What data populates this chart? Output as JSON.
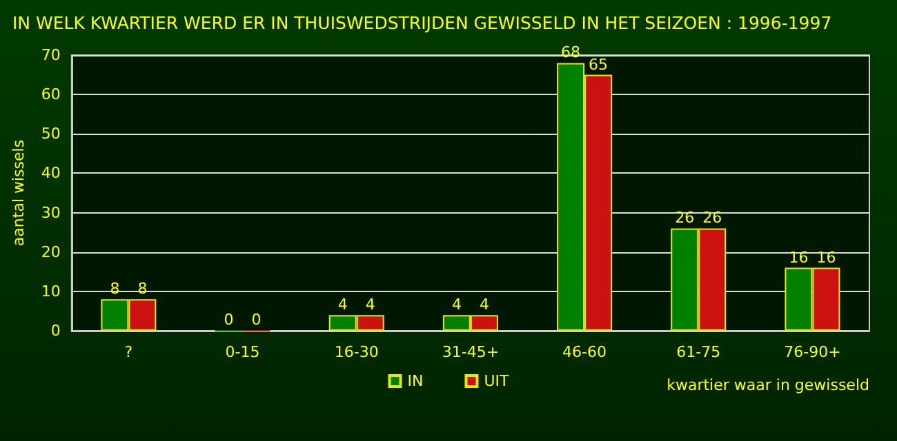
{
  "chart_data": {
    "type": "bar",
    "title": "IN WELK KWARTIER WERD ER IN THUISWEDSTRIJDEN GEWISSELD IN HET SEIZOEN : 1996-1997",
    "xlabel": "kwartier waar in gewisseld",
    "ylabel": "aantal wissels",
    "categories": [
      "?",
      "0-15",
      "16-30",
      "31-45+",
      "46-60",
      "61-75",
      "76-90+"
    ],
    "series": [
      {
        "name": "IN",
        "color": "#008000",
        "values": [
          8,
          0,
          4,
          4,
          68,
          26,
          16
        ]
      },
      {
        "name": "UIT",
        "color": "#cc1111",
        "values": [
          8,
          0,
          4,
          4,
          65,
          26,
          16
        ]
      }
    ],
    "ylim": [
      0,
      70
    ],
    "yticks": [
      0,
      10,
      20,
      30,
      40,
      50,
      60,
      70
    ],
    "grid": "y",
    "legend": "bottom",
    "data_labels": true
  }
}
